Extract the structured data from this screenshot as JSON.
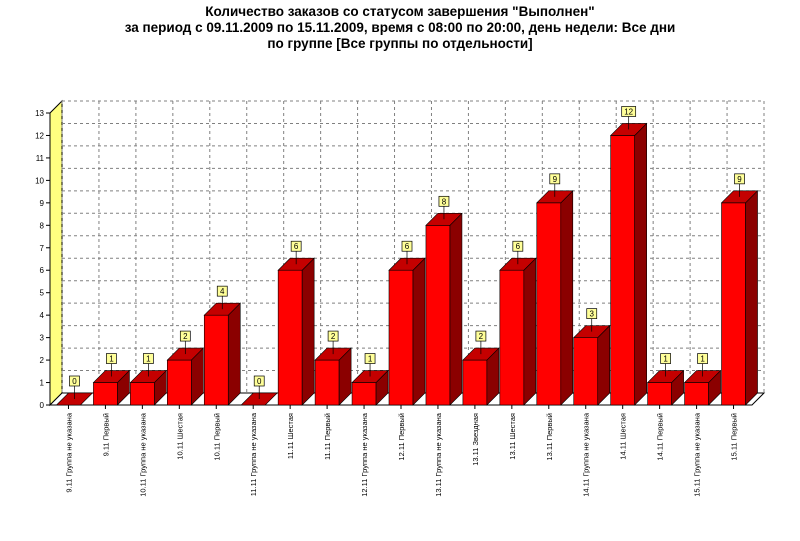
{
  "title_lines": [
    "Количество заказов со статусом завершения \"Выполнен\"",
    "за период с 09.11.2009 по 15.11.2009, время с 08:00 по 20:00, день недели: Все дни",
    "по группе [Все группы по отдельности]"
  ],
  "colors": {
    "bar_front": "#ff0000",
    "bar_side": "#8b0000",
    "bar_top": "#c40000",
    "back_wall": "#ffff80",
    "label_bg": "#ffff99",
    "grid": "#808080"
  },
  "chart_data": {
    "type": "bar",
    "title": "Количество заказов со статусом завершения \"Выполнен\" за период с 09.11.2009 по 15.11.2009, время с 08:00 по 20:00, день недели: Все дни по группе [Все группы по отдельности]",
    "xlabel": "",
    "ylabel": "",
    "ylim": [
      0,
      13
    ],
    "yticks": [
      0,
      1,
      2,
      3,
      4,
      5,
      6,
      7,
      8,
      9,
      10,
      11,
      12,
      13
    ],
    "grid": true,
    "style": "3d",
    "categories": [
      "9.11 Группа не указана",
      "9.11 Первый",
      "10.11 Группа не указана",
      "10.11 Шестая",
      "10.11 Первый",
      "11.11 Группа не указана",
      "11.11 Шестая",
      "11.11 Первый",
      "12.11 Группа не указана",
      "12.11 Первый",
      "13.11 Группа не указана",
      "13.11 Звездная",
      "13.11 Шестая",
      "13.11 Первый",
      "14.11 Группа не указана",
      "14.11 Шестая",
      "14.11 Первый",
      "15.11 Группа не указана",
      "15.11 Первый"
    ],
    "values": [
      0,
      1,
      1,
      2,
      4,
      0,
      6,
      2,
      1,
      6,
      8,
      2,
      6,
      9,
      3,
      12,
      1,
      1,
      9
    ],
    "data_labels": [
      "0",
      "1",
      "1",
      "2",
      "4",
      "0",
      "6",
      "2",
      "1",
      "6",
      "8",
      "2",
      "6",
      "9",
      "3",
      "12",
      "1",
      "1",
      "9"
    ]
  }
}
